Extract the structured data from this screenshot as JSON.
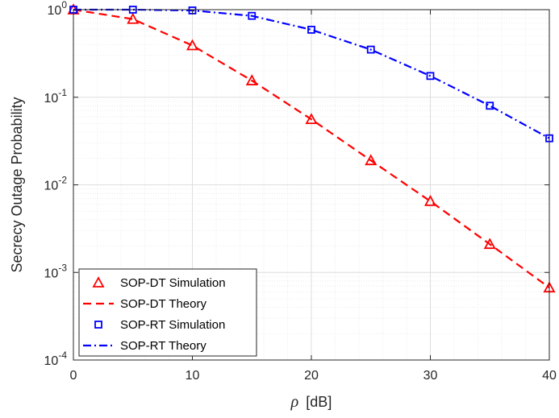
{
  "chart_data": {
    "type": "line",
    "title": "",
    "xlabel_symbol": "ρ",
    "xlabel_unit": "[dB]",
    "ylabel": "Secrecy Outage Probability",
    "x_scale": "linear",
    "y_scale": "log",
    "xlim": [
      0,
      40
    ],
    "ylim": [
      0.0001,
      1
    ],
    "x_ticks": [
      0,
      10,
      20,
      30,
      40
    ],
    "x_tick_labels": [
      "0",
      "10",
      "20",
      "30",
      "40"
    ],
    "y_ticks": [
      0.0001,
      0.001,
      0.01,
      0.1,
      1
    ],
    "y_tick_labels": [
      {
        "base": "10",
        "exp": "-4"
      },
      {
        "base": "10",
        "exp": "-3"
      },
      {
        "base": "10",
        "exp": "-2"
      },
      {
        "base": "10",
        "exp": "-1"
      },
      {
        "base": "10",
        "exp": "0"
      }
    ],
    "grid": true,
    "minor_grid": true,
    "legend_position": "lower-left",
    "series": [
      {
        "name": "SOP-DT Simulation",
        "style": "markers",
        "marker": "triangle",
        "color": "#ff0000",
        "x": [
          0,
          5,
          10,
          15,
          20,
          25,
          30,
          35,
          40
        ],
        "y": [
          1.0,
          0.78,
          0.39,
          0.155,
          0.056,
          0.019,
          0.0065,
          0.0021,
          0.00067
        ]
      },
      {
        "name": "SOP-DT Theory",
        "style": "dashed",
        "color": "#ff0000",
        "x": [
          0,
          5,
          10,
          15,
          20,
          25,
          30,
          35,
          40
        ],
        "y": [
          1.0,
          0.78,
          0.39,
          0.155,
          0.056,
          0.019,
          0.0065,
          0.0021,
          0.00067
        ]
      },
      {
        "name": "SOP-RT Simulation",
        "style": "markers",
        "marker": "square",
        "color": "#0000ff",
        "x": [
          0,
          5,
          10,
          15,
          20,
          25,
          30,
          35,
          40
        ],
        "y": [
          1.0,
          1.0,
          0.98,
          0.85,
          0.59,
          0.35,
          0.175,
          0.08,
          0.034
        ]
      },
      {
        "name": "SOP-RT Theory",
        "style": "dashdot",
        "color": "#0000ff",
        "x": [
          0,
          5,
          10,
          15,
          20,
          25,
          30,
          35,
          40
        ],
        "y": [
          1.0,
          1.0,
          0.98,
          0.85,
          0.59,
          0.35,
          0.175,
          0.08,
          0.034
        ]
      }
    ]
  }
}
